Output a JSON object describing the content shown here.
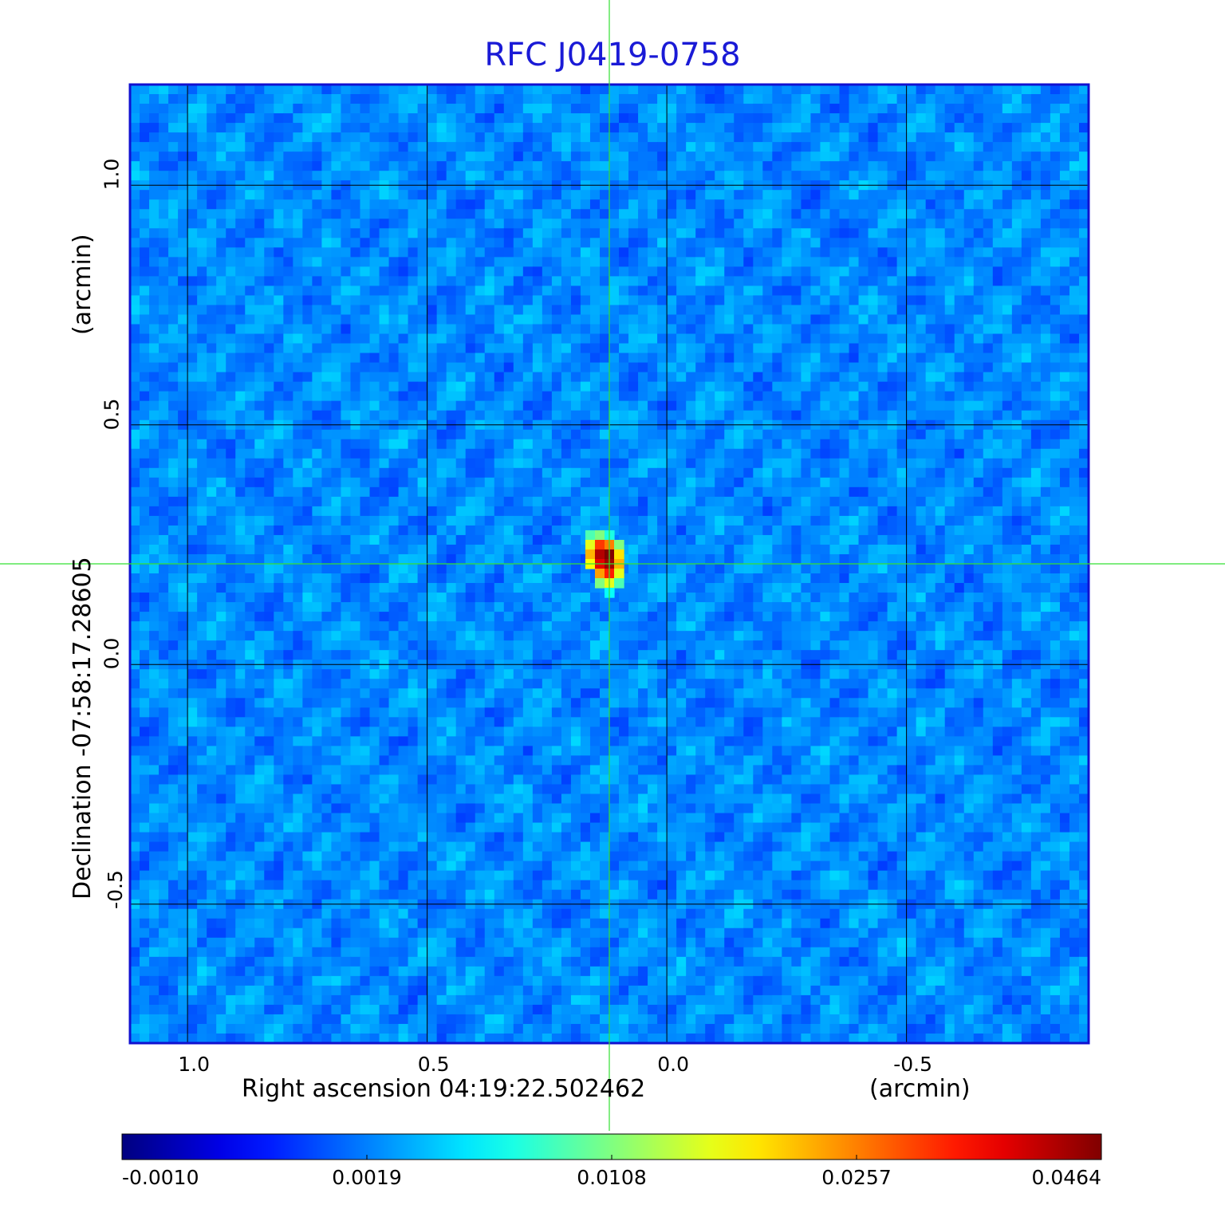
{
  "chart_data": {
    "type": "heatmap",
    "title": "RFC J0419-0758",
    "xlabel": "Right ascension  04:19:22.502462",
    "xunit": "(arcmin)",
    "ylabel": "Declination  -07:58:17.28605",
    "yunit": "(arcmin)",
    "x_ticks": [
      1.0,
      0.5,
      0.0,
      -0.5
    ],
    "x_tick_labels": [
      "1.0",
      "0.5",
      "0.0",
      "-0.5"
    ],
    "y_ticks": [
      1.0,
      0.5,
      0.0,
      -0.5
    ],
    "y_tick_labels": [
      "1.0",
      "0.5",
      "0.0",
      "-0.5"
    ],
    "xlim": [
      1.12,
      -0.88
    ],
    "ylim": [
      -0.79,
      1.21
    ],
    "grid": true,
    "colormap": "jet",
    "colorbar_ticks": [
      "-0.0010",
      "0.0019",
      "0.0108",
      "0.0257",
      "0.0464"
    ],
    "value_range": [
      -0.001,
      0.0464
    ],
    "source_peak": {
      "x": 0.12,
      "y": 0.21,
      "value": 0.0464
    },
    "crosshair": {
      "x": 0.12,
      "y": 0.21
    }
  },
  "colors": {
    "title": "#1a1ad6",
    "crosshair": "#33e033",
    "frame": "#1010d0",
    "grid": "#000000"
  }
}
